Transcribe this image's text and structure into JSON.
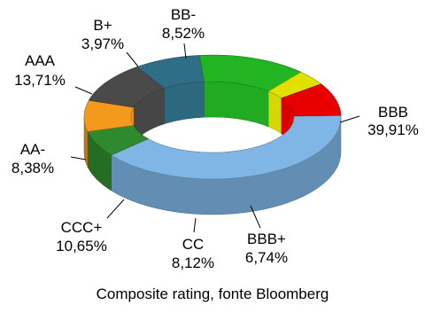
{
  "chart_data": {
    "type": "pie",
    "variant": "3d-donut",
    "title": "Composite rating, fonte Bloomberg",
    "categories": [
      "BBB",
      "BBB+",
      "CC",
      "CCC+",
      "AA-",
      "AAA",
      "B+",
      "BB-"
    ],
    "values": [
      39.91,
      6.74,
      8.12,
      10.65,
      8.38,
      13.71,
      3.97,
      8.52
    ],
    "value_labels": [
      "39,91%",
      "6,74%",
      "8,12%",
      "10,65%",
      "8,38%",
      "13,71%",
      "3,97%",
      "8,52%"
    ],
    "colors": [
      "#7fb6e6",
      "#2f8a2f",
      "#f39a1d",
      "#4a4a4a",
      "#2e6e86",
      "#22b422",
      "#e1e100",
      "#e60000"
    ]
  }
}
